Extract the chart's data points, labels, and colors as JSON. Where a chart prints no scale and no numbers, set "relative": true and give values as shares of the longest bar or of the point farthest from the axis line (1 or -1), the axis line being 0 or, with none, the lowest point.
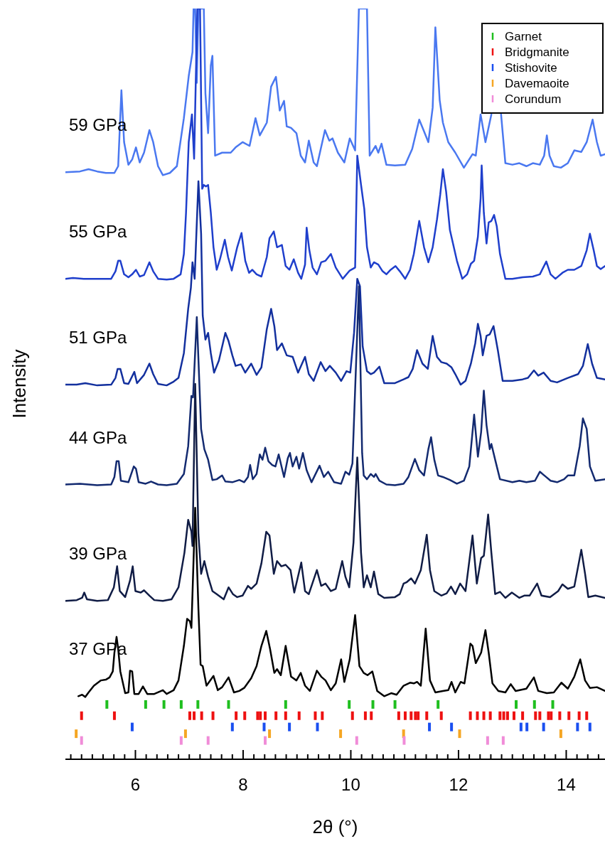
{
  "chart_data": {
    "type": "line",
    "xlabel": "2θ (°)",
    "ylabel": "Intensity",
    "relative": true,
    "legend": "top right",
    "xlim": [
      4.7,
      14.72
    ],
    "xticks": [
      {
        "value": 4.8,
        "label": null
      },
      {
        "value": 5.0,
        "label": null
      },
      {
        "value": 5.2,
        "label": null
      },
      {
        "value": 5.4,
        "label": null
      },
      {
        "value": 5.6,
        "label": null
      },
      {
        "value": 5.8,
        "label": null
      },
      6,
      {
        "value": 6.2,
        "label": null
      },
      {
        "value": 6.4,
        "label": null
      },
      {
        "value": 6.6,
        "label": null
      },
      {
        "value": 6.8,
        "label": null
      },
      {
        "value": 7.0,
        "label": null
      },
      {
        "value": 7.2,
        "label": null
      },
      {
        "value": 7.4,
        "label": null
      },
      {
        "value": 7.6,
        "label": null
      },
      {
        "value": 7.8,
        "label": null
      },
      8,
      {
        "value": 8.2,
        "label": null
      },
      {
        "value": 8.4,
        "label": null
      },
      {
        "value": 8.6,
        "label": null
      },
      {
        "value": 8.8,
        "label": null
      },
      {
        "value": 9.0,
        "label": null
      },
      {
        "value": 9.2,
        "label": null
      },
      {
        "value": 9.4,
        "label": null
      },
      {
        "value": 9.6,
        "label": null
      },
      {
        "value": 9.8,
        "label": null
      },
      10,
      {
        "value": 10.2,
        "label": null
      },
      {
        "value": 10.4,
        "label": null
      },
      {
        "value": 10.6,
        "label": null
      },
      {
        "value": 10.8,
        "label": null
      },
      {
        "value": 11.0,
        "label": null
      },
      {
        "value": 11.2,
        "label": null
      },
      {
        "value": 11.4,
        "label": null
      },
      {
        "value": 11.6,
        "label": null
      },
      {
        "value": 11.8,
        "label": null
      },
      12,
      {
        "value": 12.2,
        "label": null
      },
      {
        "value": 12.4,
        "label": null
      },
      {
        "value": 12.6,
        "label": null
      },
      {
        "value": 12.8,
        "label": null
      },
      {
        "value": 13.0,
        "label": null
      },
      {
        "value": 13.2,
        "label": null
      },
      {
        "value": 13.4,
        "label": null
      },
      {
        "value": 13.6,
        "label": null
      },
      {
        "value": 13.8,
        "label": null
      },
      14,
      {
        "value": 14.2,
        "label": null
      },
      {
        "value": 14.4,
        "label": null
      },
      {
        "value": 14.6,
        "label": null
      }
    ],
    "series": [
      {
        "name": "59 GPa",
        "color": "#4a78f0",
        "x": [
          4.7,
          4.97,
          5.13,
          5.29,
          5.45,
          5.61,
          5.68,
          5.74,
          5.79,
          5.87,
          5.94,
          6.01,
          6.08,
          6.16,
          6.26,
          6.33,
          6.42,
          6.51,
          6.64,
          6.77,
          6.9,
          6.99,
          7.06,
          7.08,
          7.11,
          7.14,
          7.17,
          7.22,
          7.27,
          7.3,
          7.35,
          7.4,
          7.43,
          7.48,
          7.61,
          7.77,
          7.86,
          7.99,
          8.12,
          8.23,
          8.31,
          8.44,
          8.52,
          8.61,
          8.68,
          8.76,
          8.81,
          8.89,
          8.99,
          9.07,
          9.15,
          9.22,
          9.31,
          9.37,
          9.52,
          9.6,
          9.66,
          9.76,
          9.88,
          9.98,
          10.08,
          10.15,
          10.24,
          10.3,
          10.35,
          10.46,
          10.51,
          10.57,
          10.66,
          10.82,
          11.01,
          11.14,
          11.27,
          11.35,
          11.44,
          11.52,
          11.57,
          11.65,
          11.71,
          11.81,
          11.94,
          12.1,
          12.26,
          12.32,
          12.41,
          12.5,
          12.61,
          12.69,
          12.79,
          12.87,
          13.0,
          13.13,
          13.26,
          13.38,
          13.51,
          13.59,
          13.64,
          13.69,
          13.77,
          13.9,
          14.03,
          14.15,
          14.28,
          14.38,
          14.49,
          14.57,
          14.64,
          14.72
        ],
        "values": [
          0.782,
          0.783,
          0.786,
          0.783,
          0.781,
          0.781,
          0.79,
          0.891,
          0.822,
          0.792,
          0.799,
          0.815,
          0.795,
          0.808,
          0.838,
          0.822,
          0.79,
          0.778,
          0.781,
          0.79,
          0.854,
          0.91,
          0.942,
          1,
          1,
          0.901,
          1,
          1,
          1,
          0.887,
          0.834,
          0.924,
          0.937,
          0.804,
          0.808,
          0.808,
          0.815,
          0.822,
          0.817,
          0.854,
          0.831,
          0.848,
          0.896,
          0.909,
          0.864,
          0.877,
          0.843,
          0.841,
          0.834,
          0.804,
          0.795,
          0.824,
          0.795,
          0.79,
          0.838,
          0.824,
          0.827,
          0.808,
          0.795,
          0.827,
          0.811,
          1,
          1,
          1,
          0.804,
          0.817,
          0.808,
          0.82,
          0.792,
          0.791,
          0.792,
          0.813,
          0.852,
          0.838,
          0.822,
          0.868,
          0.975,
          0.878,
          0.848,
          0.822,
          0.808,
          0.788,
          0.806,
          0.804,
          0.859,
          0.822,
          0.859,
          null,
          0.859,
          0.794,
          0.792,
          0.794,
          0.79,
          0.794,
          0.792,
          0.804,
          0.831,
          0.804,
          0.79,
          0.788,
          0.794,
          0.811,
          0.809,
          0.822,
          0.852,
          0.822,
          0.804,
          0.806
        ]
      },
      {
        "name": "55 GPa",
        "color": "#1f3fcc",
        "x": [
          4.7,
          4.84,
          5.04,
          5.29,
          5.55,
          5.63,
          5.68,
          5.72,
          5.79,
          5.87,
          5.94,
          6.01,
          6.08,
          6.16,
          6.26,
          6.33,
          6.42,
          6.58,
          6.71,
          6.84,
          6.9,
          6.94,
          6.99,
          7.05,
          7.09,
          7.15,
          7.2,
          7.24,
          7.27,
          7.31,
          7.35,
          7.4,
          7.45,
          7.51,
          7.57,
          7.66,
          7.72,
          7.79,
          7.89,
          7.97,
          8.04,
          8.11,
          8.17,
          8.25,
          8.34,
          8.44,
          8.49,
          8.57,
          8.63,
          8.72,
          8.79,
          8.86,
          8.94,
          9.02,
          9.08,
          9.15,
          9.18,
          9.23,
          9.29,
          9.37,
          9.45,
          9.53,
          9.63,
          9.72,
          9.85,
          9.98,
          10.08,
          10.12,
          10.19,
          10.25,
          10.3,
          10.37,
          10.43,
          10.51,
          10.59,
          10.66,
          10.74,
          10.83,
          10.91,
          11.01,
          11.1,
          11.17,
          11.27,
          11.36,
          11.44,
          11.52,
          11.6,
          11.66,
          11.71,
          11.77,
          11.84,
          11.97,
          12.07,
          12.16,
          12.23,
          12.29,
          12.36,
          12.41,
          12.43,
          12.47,
          12.52,
          12.56,
          12.61,
          12.66,
          12.71,
          12.77,
          12.87,
          13.0,
          13.19,
          13.38,
          13.51,
          13.63,
          13.71,
          13.8,
          13.93,
          14.03,
          14.15,
          14.28,
          14.38,
          14.44,
          14.51,
          14.57,
          14.64,
          14.72
        ],
        "values": [
          0.64,
          0.641,
          0.64,
          0.64,
          0.64,
          0.65,
          0.664,
          0.664,
          0.646,
          0.642,
          0.646,
          0.652,
          0.643,
          0.645,
          0.662,
          0.65,
          0.64,
          0.639,
          0.64,
          0.646,
          0.673,
          0.728,
          0.822,
          0.859,
          0.8,
          1,
          1,
          0.76,
          0.765,
          0.763,
          0.765,
          0.728,
          0.682,
          0.652,
          0.666,
          0.692,
          0.669,
          0.651,
          0.682,
          0.701,
          0.664,
          0.648,
          0.652,
          0.646,
          0.643,
          0.669,
          0.694,
          0.703,
          0.682,
          0.685,
          0.657,
          0.652,
          0.666,
          0.648,
          0.64,
          0.659,
          0.708,
          0.678,
          0.655,
          0.646,
          0.662,
          0.664,
          0.673,
          0.655,
          0.64,
          0.651,
          0.655,
          0.804,
          0.765,
          0.733,
          0.682,
          0.655,
          0.662,
          0.659,
          0.65,
          0.646,
          0.652,
          0.657,
          0.65,
          0.64,
          0.652,
          0.673,
          0.717,
          0.682,
          0.662,
          0.682,
          0.719,
          0.752,
          0.786,
          0.756,
          0.705,
          0.664,
          0.64,
          0.646,
          0.66,
          0.664,
          0.696,
          0.747,
          0.791,
          0.728,
          0.687,
          0.715,
          0.717,
          0.725,
          0.71,
          0.673,
          0.64,
          0.64,
          0.642,
          0.643,
          0.646,
          0.663,
          0.646,
          0.64,
          0.648,
          0.652,
          0.652,
          0.657,
          0.678,
          0.7,
          0.678,
          0.657,
          0.653,
          0.657
        ]
      },
      {
        "name": "51 GPa",
        "color": "#13309e",
        "x": [
          4.7,
          4.91,
          5.07,
          5.29,
          5.55,
          5.63,
          5.67,
          5.72,
          5.79,
          5.87,
          5.98,
          6.03,
          6.16,
          6.26,
          6.33,
          6.42,
          6.58,
          6.71,
          6.8,
          6.9,
          6.98,
          7.03,
          7.06,
          7.1,
          7.17,
          7.22,
          7.25,
          7.3,
          7.35,
          7.4,
          7.46,
          7.55,
          7.67,
          7.73,
          7.8,
          7.86,
          7.96,
          8.04,
          8.15,
          8.25,
          8.34,
          8.44,
          8.52,
          8.58,
          8.63,
          8.72,
          8.81,
          8.92,
          9.02,
          9.15,
          9.22,
          9.31,
          9.44,
          9.53,
          9.61,
          9.72,
          9.82,
          9.92,
          9.99,
          10.06,
          10.12,
          10.17,
          10.22,
          10.3,
          10.37,
          10.43,
          10.53,
          10.62,
          10.82,
          10.98,
          11.07,
          11.15,
          11.23,
          11.33,
          11.43,
          11.52,
          11.6,
          11.68,
          11.78,
          11.87,
          11.94,
          12.04,
          12.13,
          12.23,
          12.31,
          12.36,
          12.41,
          12.45,
          12.52,
          12.58,
          12.65,
          12.73,
          12.82,
          13.0,
          13.19,
          13.29,
          13.4,
          13.48,
          13.58,
          13.71,
          13.83,
          14.03,
          14.22,
          14.31,
          14.4,
          14.48,
          14.57,
          14.72
        ],
        "values": [
          0.499,
          0.499,
          0.501,
          0.498,
          0.499,
          0.508,
          0.52,
          0.52,
          0.501,
          0.5,
          0.516,
          0.501,
          0.512,
          0.527,
          0.513,
          0.5,
          0.498,
          0.503,
          0.508,
          0.541,
          0.6,
          0.628,
          0.662,
          0.64,
          0.77,
          0.7,
          0.591,
          0.559,
          0.568,
          0.541,
          0.515,
          0.531,
          0.568,
          0.557,
          0.538,
          0.524,
          0.526,
          0.515,
          0.527,
          0.512,
          0.522,
          0.573,
          0.6,
          0.577,
          0.545,
          0.554,
          0.538,
          0.536,
          0.515,
          0.536,
          0.513,
          0.504,
          0.529,
          0.517,
          0.524,
          0.515,
          0.504,
          0.517,
          0.515,
          0.568,
          0.64,
          0.63,
          0.55,
          0.517,
          0.513,
          0.515,
          0.523,
          0.501,
          0.501,
          0.506,
          0.509,
          0.52,
          0.545,
          0.527,
          0.52,
          0.564,
          0.536,
          0.529,
          0.527,
          0.522,
          0.513,
          0.499,
          0.504,
          0.527,
          0.554,
          0.58,
          0.564,
          0.538,
          0.564,
          0.566,
          0.577,
          0.545,
          0.504,
          0.504,
          0.506,
          0.508,
          0.518,
          0.511,
          0.515,
          0.504,
          0.502,
          0.508,
          0.513,
          0.524,
          0.553,
          0.527,
          0.508,
          0.506
        ]
      },
      {
        "name": "44 GPa",
        "color": "#132a70",
        "x": [
          4.7,
          4.97,
          5.29,
          5.55,
          5.61,
          5.65,
          5.69,
          5.73,
          5.87,
          5.97,
          6.01,
          6.06,
          6.19,
          6.29,
          6.42,
          6.58,
          6.77,
          6.9,
          6.98,
          7.04,
          7.07,
          7.14,
          7.22,
          7.28,
          7.35,
          7.43,
          7.51,
          7.61,
          7.67,
          7.8,
          7.93,
          8.02,
          8.09,
          8.13,
          8.18,
          8.25,
          8.31,
          8.36,
          8.41,
          8.47,
          8.54,
          8.6,
          8.66,
          8.73,
          8.76,
          8.83,
          8.87,
          8.92,
          8.99,
          9.04,
          9.11,
          9.18,
          9.27,
          9.42,
          9.5,
          9.58,
          9.69,
          9.82,
          9.9,
          9.97,
          10.03,
          10.15,
          10.21,
          10.24,
          10.3,
          10.37,
          10.43,
          10.46,
          10.53,
          10.66,
          10.82,
          10.98,
          11.07,
          11.19,
          11.27,
          11.36,
          11.44,
          11.49,
          11.55,
          11.62,
          11.71,
          11.84,
          11.97,
          12.1,
          12.2,
          12.29,
          12.36,
          12.42,
          12.47,
          12.52,
          12.58,
          12.61,
          12.68,
          12.77,
          13.0,
          13.13,
          13.26,
          13.42,
          13.51,
          13.61,
          13.71,
          13.83,
          13.96,
          14.03,
          14.15,
          14.25,
          14.31,
          14.38,
          14.44,
          14.54,
          14.72
        ],
        "values": [
          0.366,
          0.367,
          0.365,
          0.366,
          0.376,
          0.397,
          0.397,
          0.371,
          0.369,
          0.39,
          0.387,
          0.369,
          0.367,
          0.37,
          0.366,
          0.365,
          0.367,
          0.38,
          0.417,
          0.484,
          0.482,
          0.589,
          0.44,
          0.413,
          0.399,
          0.372,
          0.373,
          0.378,
          0.37,
          0.369,
          0.372,
          0.369,
          0.376,
          0.392,
          0.373,
          0.38,
          0.406,
          0.399,
          0.415,
          0.397,
          0.392,
          0.39,
          0.406,
          0.385,
          0.376,
          0.401,
          0.408,
          0.39,
          0.403,
          0.387,
          0.408,
          0.385,
          0.369,
          0.391,
          0.376,
          0.383,
          0.369,
          0.367,
          0.383,
          0.379,
          0.394,
          0.63,
          0.408,
          0.378,
          0.373,
          0.38,
          0.376,
          0.38,
          0.371,
          0.366,
          0.365,
          0.367,
          0.376,
          0.4,
          0.385,
          0.378,
          0.413,
          0.429,
          0.399,
          0.378,
          0.376,
          0.372,
          0.367,
          0.371,
          0.39,
          0.459,
          0.403,
          0.436,
          0.491,
          0.445,
          0.413,
          0.42,
          0.399,
          0.373,
          0.369,
          0.371,
          0.369,
          0.371,
          0.383,
          0.377,
          0.371,
          0.369,
          0.373,
          0.378,
          0.378,
          0.417,
          0.454,
          0.44,
          0.39,
          0.371,
          0.373
        ]
      },
      {
        "name": "39 GPa",
        "color": "#101c45",
        "x": [
          4.7,
          4.91,
          5.01,
          5.05,
          5.1,
          5.29,
          5.49,
          5.6,
          5.66,
          5.71,
          5.81,
          5.9,
          5.95,
          6.0,
          6.1,
          6.16,
          6.26,
          6.35,
          6.51,
          6.67,
          6.8,
          6.91,
          6.98,
          7.04,
          7.06,
          7.11,
          7.17,
          7.22,
          7.28,
          7.35,
          7.43,
          7.51,
          7.64,
          7.73,
          7.81,
          7.89,
          7.99,
          8.09,
          8.15,
          8.25,
          8.34,
          8.43,
          8.49,
          8.57,
          8.63,
          8.71,
          8.79,
          8.88,
          8.95,
          9.08,
          9.15,
          9.22,
          9.37,
          9.45,
          9.53,
          9.63,
          9.72,
          9.84,
          9.9,
          9.97,
          10.05,
          10.12,
          10.19,
          10.24,
          10.3,
          10.37,
          10.43,
          10.51,
          10.62,
          10.82,
          10.91,
          10.98,
          11.04,
          11.12,
          11.19,
          11.3,
          11.41,
          11.47,
          11.55,
          11.68,
          11.78,
          11.86,
          11.94,
          12.03,
          12.13,
          12.26,
          12.34,
          12.42,
          12.47,
          12.55,
          12.61,
          12.68,
          12.77,
          12.87,
          12.99,
          13.13,
          13.22,
          13.32,
          13.46,
          13.54,
          13.7,
          13.85,
          13.93,
          14.03,
          14.15,
          14.28,
          14.35,
          14.41,
          14.54,
          14.72
        ],
        "values": [
          0.211,
          0.212,
          0.215,
          0.222,
          0.213,
          0.211,
          0.212,
          0.229,
          0.257,
          0.224,
          0.216,
          0.238,
          0.257,
          0.224,
          0.222,
          0.225,
          0.218,
          0.212,
          0.211,
          0.213,
          0.229,
          0.275,
          0.319,
          0.303,
          0.284,
          0.5,
          0.3,
          0.247,
          0.264,
          0.243,
          0.224,
          0.22,
          0.213,
          0.229,
          0.22,
          0.216,
          0.218,
          0.231,
          0.227,
          0.234,
          0.261,
          0.303,
          0.298,
          0.247,
          0.264,
          0.257,
          0.259,
          0.252,
          0.222,
          0.262,
          0.224,
          0.22,
          0.252,
          0.231,
          0.234,
          0.224,
          0.227,
          0.264,
          0.243,
          0.229,
          0.289,
          0.402,
          0.275,
          0.229,
          0.245,
          0.229,
          0.25,
          0.22,
          0.215,
          0.216,
          0.22,
          0.234,
          0.236,
          0.241,
          0.234,
          0.252,
          0.299,
          0.252,
          0.224,
          0.218,
          0.221,
          0.23,
          0.22,
          0.234,
          0.224,
          0.298,
          0.234,
          0.268,
          0.271,
          0.326,
          0.275,
          0.22,
          0.223,
          0.215,
          0.222,
          0.215,
          0.218,
          0.218,
          0.234,
          0.218,
          0.216,
          0.224,
          0.233,
          0.227,
          0.23,
          0.279,
          0.247,
          0.216,
          0.218,
          0.215
        ]
      },
      {
        "name": "37 GPa",
        "color": "#000000",
        "x": [
          4.94,
          5.01,
          5.07,
          5.13,
          5.23,
          5.36,
          5.45,
          5.52,
          5.58,
          5.61,
          5.65,
          5.68,
          5.72,
          5.81,
          5.87,
          5.9,
          5.94,
          5.98,
          6.06,
          6.14,
          6.22,
          6.35,
          6.51,
          6.58,
          6.71,
          6.8,
          6.9,
          6.96,
          7.01,
          7.04,
          7.11,
          7.17,
          7.21,
          7.25,
          7.32,
          7.45,
          7.53,
          7.61,
          7.73,
          7.83,
          7.93,
          8.02,
          8.15,
          8.25,
          8.34,
          8.43,
          8.5,
          8.58,
          8.63,
          8.7,
          8.79,
          8.89,
          8.99,
          9.07,
          9.15,
          9.24,
          9.37,
          9.45,
          9.53,
          9.63,
          9.72,
          9.82,
          9.88,
          9.98,
          10.08,
          10.16,
          10.24,
          10.31,
          10.4,
          10.49,
          10.62,
          10.75,
          10.85,
          10.98,
          11.1,
          11.17,
          11.23,
          11.3,
          11.39,
          11.47,
          11.57,
          11.71,
          11.81,
          11.87,
          11.94,
          12.04,
          12.11,
          12.22,
          12.26,
          12.32,
          12.42,
          12.5,
          12.56,
          12.63,
          12.74,
          12.87,
          12.97,
          13.06,
          13.26,
          13.4,
          13.48,
          13.64,
          13.77,
          13.91,
          14.03,
          14.15,
          14.26,
          14.35,
          14.44,
          14.57,
          14.72
        ],
        "values": [
          0.084,
          0.086,
          0.083,
          0.089,
          0.098,
          0.105,
          0.106,
          0.109,
          0.117,
          0.142,
          0.163,
          0.147,
          0.117,
          0.088,
          0.089,
          0.118,
          0.117,
          0.087,
          0.087,
          0.097,
          0.087,
          0.087,
          0.092,
          0.087,
          0.092,
          0.105,
          0.151,
          0.187,
          0.184,
          0.175,
          0.335,
          0.2,
          0.126,
          0.124,
          0.098,
          0.111,
          0.092,
          0.096,
          0.109,
          0.089,
          0.091,
          0.095,
          0.108,
          0.124,
          0.151,
          0.171,
          0.147,
          0.115,
          0.12,
          0.112,
          0.151,
          0.11,
          0.105,
          0.115,
          0.098,
          0.091,
          0.118,
          0.11,
          0.105,
          0.092,
          0.101,
          0.133,
          0.103,
          0.133,
          0.192,
          0.124,
          0.115,
          0.112,
          0.117,
          0.091,
          0.084,
          0.088,
          0.086,
          0.098,
          0.102,
          0.101,
          0.103,
          0.098,
          0.174,
          0.105,
          0.089,
          0.091,
          0.092,
          0.103,
          0.089,
          0.103,
          0.101,
          0.154,
          0.151,
          0.128,
          0.142,
          0.172,
          0.142,
          0.101,
          0.091,
          0.089,
          0.1,
          0.091,
          0.094,
          0.109,
          0.091,
          0.088,
          0.089,
          0.102,
          0.094,
          0.11,
          0.133,
          0.105,
          0.095,
          0.096,
          0.091
        ]
      },
      {
        "type": "scatter",
        "name": "Garnet",
        "color": "#1fbf1f",
        "x": [
          5.47,
          6.19,
          6.53,
          6.85,
          7.16,
          7.73,
          8.79,
          9.97,
          10.41,
          10.82,
          11.62,
          13.07,
          13.41,
          13.75
        ],
        "values": [
          0.073,
          0.073,
          0.073,
          0.073,
          0.073,
          0.073,
          0.073,
          0.073,
          0.073,
          0.073,
          0.073,
          0.073,
          0.073,
          0.073
        ]
      },
      {
        "type": "scatter",
        "name": "Bridgmanite",
        "color": "#ee1111",
        "x": [
          5.0,
          5.61,
          7.01,
          7.09,
          7.23,
          7.44,
          7.87,
          8.03,
          8.27,
          8.32,
          8.41,
          8.61,
          8.79,
          9.04,
          9.34,
          9.47,
          10.03,
          10.27,
          10.38,
          10.89,
          11.01,
          11.12,
          11.2,
          11.25,
          11.41,
          11.68,
          12.22,
          12.35,
          12.47,
          12.59,
          12.77,
          12.84,
          12.91,
          13.03,
          13.19,
          13.43,
          13.51,
          13.67,
          13.72,
          13.88,
          14.05,
          14.24,
          14.38
        ],
        "values": [
          0.058,
          0.058,
          0.058,
          0.058,
          0.058,
          0.058,
          0.058,
          0.058,
          0.058,
          0.058,
          0.058,
          0.058,
          0.058,
          0.058,
          0.058,
          0.058,
          0.058,
          0.058,
          0.058,
          0.058,
          0.058,
          0.058,
          0.058,
          0.058,
          0.058,
          0.058,
          0.058,
          0.058,
          0.058,
          0.058,
          0.058,
          0.058,
          0.058,
          0.058,
          0.058,
          0.058,
          0.058,
          0.058,
          0.058,
          0.058,
          0.058,
          0.058,
          0.058
        ]
      },
      {
        "type": "scatter",
        "name": "Stishovite",
        "color": "#1a4ff0",
        "x": [
          5.94,
          7.8,
          8.39,
          8.86,
          9.38,
          11.46,
          11.87,
          13.16,
          13.27,
          13.58,
          14.21,
          14.44
        ],
        "values": [
          0.043,
          0.043,
          0.043,
          0.043,
          0.043,
          0.043,
          0.043,
          0.043,
          0.043,
          0.043,
          0.043,
          0.043
        ]
      },
      {
        "type": "scatter",
        "name": "Davemaoite",
        "color": "#f5a623",
        "x": [
          4.9,
          6.93,
          8.49,
          9.81,
          10.98,
          12.02,
          13.9
        ],
        "values": [
          0.034,
          0.034,
          0.034,
          0.034,
          0.034,
          0.034,
          0.034
        ]
      },
      {
        "type": "scatter",
        "name": "Corundum",
        "color": "#f08cd8",
        "x": [
          5.0,
          6.85,
          7.35,
          8.41,
          10.11,
          10.99,
          12.54,
          12.83
        ],
        "values": [
          0.025,
          0.025,
          0.025,
          0.025,
          0.025,
          0.025,
          0.025,
          0.025
        ]
      }
    ]
  }
}
